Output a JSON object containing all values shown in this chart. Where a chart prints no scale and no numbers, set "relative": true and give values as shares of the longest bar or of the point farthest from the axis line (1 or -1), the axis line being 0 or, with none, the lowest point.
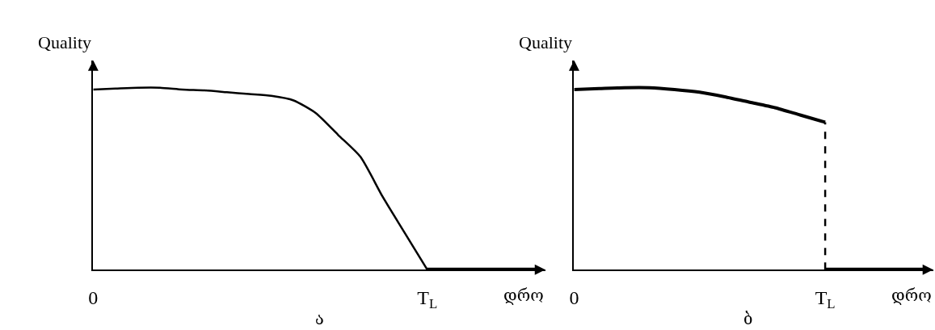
{
  "chart_data": [
    {
      "type": "line",
      "relative": true,
      "ylabel": "Quality",
      "xlabel": "დრო",
      "annotations": [
        "ა"
      ],
      "categories": [
        "0",
        null,
        null,
        null,
        null,
        null,
        null,
        null,
        null,
        null,
        null,
        null,
        null,
        null,
        null,
        "T$_{L}$",
        null,
        null,
        null,
        null,
        null
      ],
      "tick_labels": "x",
      "line_style": "solid",
      "marker": "none",
      "series": [
        {
          "color": "#000000",
          "values": [
            0.99,
            0.995,
            1.0,
            1.0,
            0.99,
            0.985,
            0.975,
            0.965,
            0.955,
            0.93,
            0.86,
            0.74,
            0.62,
            0.4,
            0.2,
            0,
            null,
            null,
            null,
            null,
            null
          ]
        },
        {
          "color": "#000000",
          "values": [
            null,
            null,
            null,
            null,
            null,
            null,
            null,
            null,
            null,
            null,
            null,
            null,
            null,
            null,
            null,
            0,
            0,
            0,
            0,
            0,
            0
          ]
        }
      ]
    },
    {
      "type": "line",
      "relative": true,
      "ylabel": "Quality",
      "xlabel": "დრო",
      "annotations": [
        "ბ"
      ],
      "categories": [
        "0",
        null,
        null,
        null,
        null,
        null,
        null,
        null,
        null,
        null,
        "T$_{L}$",
        null,
        null,
        null,
        null
      ],
      "tick_labels": "x",
      "marker": "none",
      "series": [
        {
          "color": "#000000",
          "values": [
            0.99,
            0.995,
            1.0,
            1.0,
            0.99,
            0.975,
            0.95,
            0.92,
            0.89,
            0.85,
            0.81,
            null,
            null,
            null,
            null
          ],
          "line_style": "solid"
        },
        {
          "color": "#000000",
          "x": [
            "T$_{L}$",
            "T$_{L}$"
          ],
          "values": [
            0,
            0.81
          ],
          "line_style": "dashed"
        },
        {
          "color": "#000000",
          "values": [
            null,
            null,
            null,
            null,
            null,
            null,
            null,
            null,
            null,
            null,
            0,
            0,
            0,
            0,
            0
          ],
          "line_style": "solid"
        }
      ]
    }
  ]
}
